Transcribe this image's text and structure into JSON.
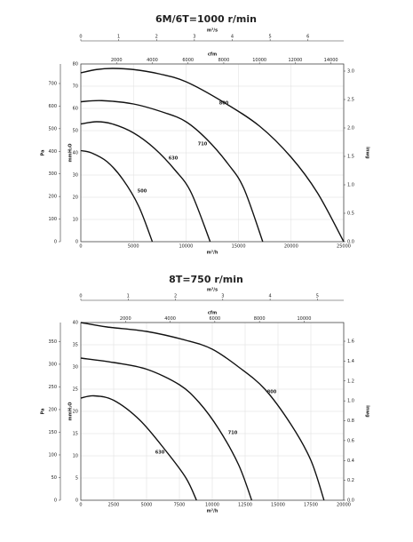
{
  "chart_data": [
    {
      "type": "line",
      "title": "6M/6T=1000 r/min",
      "grid": true,
      "x_label": "m³/h",
      "xlim": [
        0,
        25000
      ],
      "xticks": [
        0,
        5000,
        10000,
        15000,
        20000,
        25000
      ],
      "x2_label": "m³/s",
      "x2lim": [
        0,
        6.944
      ],
      "x2ticks": [
        0,
        1,
        2,
        3,
        4,
        5,
        6
      ],
      "x3_label": "cfm",
      "x3lim": [
        0,
        14714
      ],
      "x3ticks": [
        2000,
        4000,
        6000,
        8000,
        10000,
        12000,
        14000
      ],
      "y_label": "mmH₂O",
      "ylim": [
        0,
        80
      ],
      "yticks": [
        0,
        10,
        20,
        30,
        40,
        50,
        60,
        70,
        80
      ],
      "y2_label": "inwg",
      "y2lim": [
        0,
        3.125
      ],
      "y2ticks": [
        {
          "value": 0,
          "label": "0.0"
        },
        0.5,
        {
          "value": 1,
          "label": "1.0"
        },
        1.5,
        {
          "value": 2,
          "label": "2.0"
        },
        2.5,
        {
          "value": 3,
          "label": "3.0"
        }
      ],
      "y3_label": "Pa",
      "y3lim": [
        0,
        786.5
      ],
      "y3ticks": [
        0,
        100,
        200,
        300,
        400,
        500,
        600,
        700
      ],
      "series": [
        {
          "name": "800",
          "color": "#111111",
          "x": [
            0,
            1500,
            3000,
            5000,
            7500,
            10000,
            13500,
            17000,
            20000,
            22500,
            25000
          ],
          "values": [
            76,
            77.5,
            78,
            77.5,
            75.5,
            72,
            63,
            52,
            38,
            22,
            0
          ]
        },
        {
          "name": "710",
          "color": "#111111",
          "x": [
            0,
            2000,
            5000,
            8000,
            10000,
            12000,
            14000,
            15500,
            17300
          ],
          "values": [
            63,
            63.5,
            62,
            58,
            54,
            46,
            35,
            24,
            0
          ]
        },
        {
          "name": "630",
          "color": "#111111",
          "x": [
            0,
            1500,
            3000,
            5000,
            7000,
            9000,
            10500,
            12300
          ],
          "values": [
            53,
            54,
            53,
            49,
            42,
            32,
            22,
            0
          ]
        },
        {
          "name": "500",
          "color": "#111111",
          "x": [
            0,
            1000,
            2500,
            4000,
            5500,
            6800
          ],
          "values": [
            41,
            40,
            36,
            28,
            16,
            0
          ]
        }
      ]
    },
    {
      "type": "line",
      "title": "8T=750 r/min",
      "grid": true,
      "x_label": "m³/h",
      "xlim": [
        0,
        20000
      ],
      "xticks": [
        0,
        2500,
        5000,
        7500,
        10000,
        12500,
        15000,
        17500,
        20000
      ],
      "x2_label": "m³/s",
      "x2lim": [
        0,
        5.556
      ],
      "x2ticks": [
        0,
        1,
        2,
        3,
        4,
        5
      ],
      "x3_label": "cfm",
      "x3lim": [
        0,
        11772
      ],
      "x3ticks": [
        2000,
        4000,
        6000,
        8000,
        10000
      ],
      "y_label": "mmH₂O",
      "ylim": [
        0,
        40
      ],
      "yticks": [
        0,
        5,
        10,
        15,
        20,
        25,
        30,
        35,
        40
      ],
      "y2_label": "inwg",
      "y2lim": [
        0,
        1.788
      ],
      "y2ticks": [
        {
          "value": 0,
          "label": "0.0"
        },
        0.2,
        0.4,
        0.6,
        0.8,
        {
          "value": 1,
          "label": "1.0"
        },
        1.2,
        1.4,
        1.6
      ],
      "y3_label": "Pa",
      "y3lim": [
        0,
        392
      ],
      "y3ticks": [
        0,
        50,
        100,
        150,
        200,
        250,
        300,
        350
      ],
      "series": [
        {
          "name": "800",
          "color": "#111111",
          "x": [
            0,
            2000,
            5000,
            8000,
            10000,
            12000,
            14000,
            16000,
            17500,
            18500
          ],
          "values": [
            40,
            39,
            38,
            36,
            34,
            30,
            25,
            17,
            9,
            0
          ]
        },
        {
          "name": "710",
          "color": "#111111",
          "x": [
            0,
            2500,
            5000,
            7500,
            9000,
            10500,
            12000,
            13000
          ],
          "values": [
            32,
            31,
            29.5,
            26,
            22,
            16,
            8,
            0
          ]
        },
        {
          "name": "630",
          "color": "#111111",
          "x": [
            0,
            1000,
            2500,
            4500,
            6500,
            8000,
            8800
          ],
          "values": [
            23,
            23.5,
            22.5,
            18,
            11,
            5,
            0
          ]
        }
      ]
    }
  ]
}
